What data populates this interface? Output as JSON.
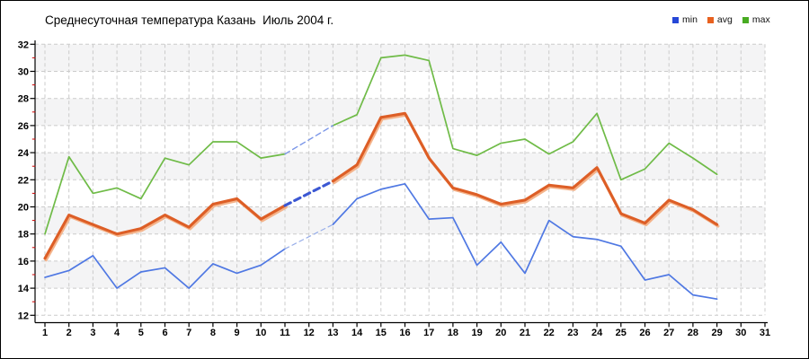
{
  "title": "Среднесуточная температура Казань  Июль 2004 г.",
  "legend": {
    "items": [
      {
        "label": "min",
        "color": "#2647d7"
      },
      {
        "label": "avg",
        "color": "#e8611f"
      },
      {
        "label": "max",
        "color": "#48ab22"
      }
    ]
  },
  "chart_data": {
    "type": "line",
    "title": "Среднесуточная температура Казань  Июль 2004 г.",
    "x": [
      1,
      2,
      3,
      4,
      5,
      6,
      7,
      8,
      9,
      10,
      11,
      12,
      13,
      14,
      15,
      16,
      17,
      18,
      19,
      20,
      21,
      22,
      23,
      24,
      25,
      26,
      27,
      28,
      29,
      30,
      31
    ],
    "ylim": [
      12,
      32
    ],
    "ytick_step": 2,
    "grid": true,
    "legend_position": "top-right",
    "missing_x": [
      12,
      30,
      31
    ],
    "series": [
      {
        "name": "min",
        "color": "#4f78e3",
        "width": 1.7,
        "gap_style": {
          "color": "#96ade9",
          "width": 1.2,
          "dash": "5 4"
        },
        "values": [
          14.8,
          15.3,
          16.4,
          14.0,
          15.2,
          15.5,
          14.0,
          15.8,
          15.1,
          15.7,
          16.9,
          null,
          18.7,
          20.6,
          21.3,
          21.7,
          19.1,
          19.2,
          15.7,
          17.4,
          15.1,
          19.0,
          17.8,
          17.6,
          17.1,
          14.6,
          15.0,
          13.5,
          13.2,
          null,
          null
        ]
      },
      {
        "name": "avg",
        "color": "#dd5e26",
        "width": 3.1,
        "shadow": "#f4b38a",
        "gap_style": {
          "color": "#3b57d3",
          "width": 3.1,
          "dash": "7 5"
        },
        "values": [
          16.2,
          19.4,
          18.7,
          18.0,
          18.4,
          19.4,
          18.5,
          20.2,
          20.6,
          19.1,
          20.1,
          null,
          21.9,
          23.1,
          26.6,
          26.9,
          23.6,
          21.4,
          20.9,
          20.2,
          20.5,
          21.6,
          21.4,
          22.9,
          19.5,
          18.8,
          20.5,
          19.8,
          18.7,
          null,
          null
        ]
      },
      {
        "name": "max",
        "color": "#6fbb47",
        "width": 1.7,
        "gap_style": {
          "color": "#7b96e8",
          "width": 1.4,
          "dash": "6 4"
        },
        "values": [
          18.0,
          23.7,
          21.0,
          21.4,
          20.6,
          23.6,
          23.1,
          24.8,
          24.8,
          23.6,
          23.9,
          null,
          26.0,
          26.8,
          31.0,
          31.2,
          30.8,
          24.3,
          23.8,
          24.7,
          25.0,
          23.9,
          24.8,
          26.9,
          22.0,
          22.8,
          24.7,
          23.6,
          22.4,
          null,
          null
        ]
      }
    ],
    "style": {
      "stripe_color": "#f4f4f5",
      "grid_color": "#cbcbcb",
      "axis_color": "#000000",
      "minor_tick_color": "#cc0000",
      "background": "#ffffff"
    }
  }
}
